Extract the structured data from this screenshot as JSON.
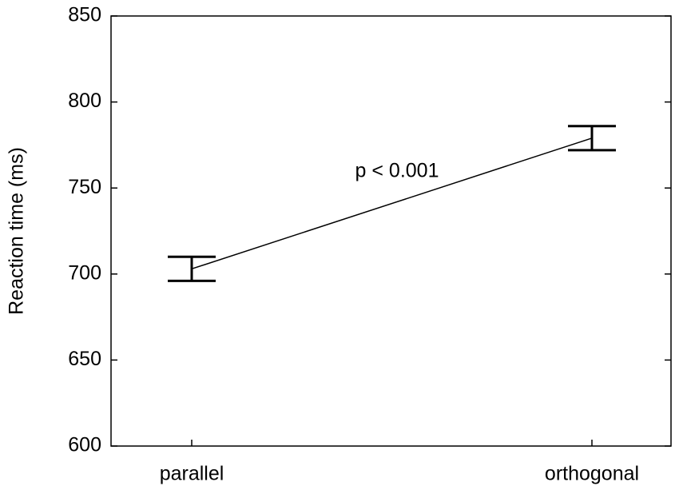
{
  "chart_data": {
    "type": "line",
    "ylabel": "Reaction time (ms)",
    "categories": [
      "parallel",
      "orthogonal"
    ],
    "values": [
      703,
      779
    ],
    "errors": [
      7,
      7
    ],
    "color": "#000000",
    "ylim": [
      600,
      850
    ],
    "yticks": [
      600,
      650,
      700,
      750,
      800,
      850
    ],
    "annotation": "p < 0.001"
  }
}
